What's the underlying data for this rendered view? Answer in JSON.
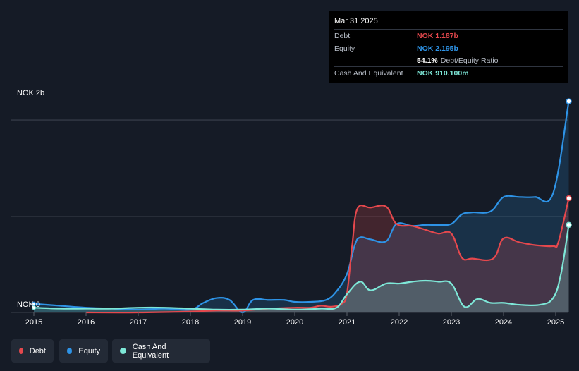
{
  "tooltip": {
    "date": "Mar 31 2025",
    "debt_label": "Debt",
    "debt_value": "NOK 1.187b",
    "equity_label": "Equity",
    "equity_value": "NOK 2.195b",
    "ratio_value": "54.1%",
    "ratio_label": "Debt/Equity Ratio",
    "cash_label": "Cash And Equivalent",
    "cash_value": "NOK 910.100m"
  },
  "legend": {
    "debt": "Debt",
    "equity": "Equity",
    "cash": "Cash And Equivalent"
  },
  "colors": {
    "debt": "#e5484d",
    "equity": "#2e93e6",
    "cash": "#7ee8d8",
    "background": "#151b26"
  },
  "chart_data": {
    "type": "area",
    "title": "",
    "xlabel": "",
    "ylabel": "",
    "y_axis_labels": [
      "NOK 2b",
      "NOK 0"
    ],
    "ylim_billions": [
      0,
      2.2
    ],
    "x_ticks": [
      "2015",
      "2016",
      "2017",
      "2018",
      "2019",
      "2020",
      "2021",
      "2022",
      "2023",
      "2024",
      "2025"
    ],
    "grid": true,
    "legend_position": "bottom-left",
    "series": [
      {
        "name": "Debt",
        "x": [
          2016.0,
          2017.0,
          2018.0,
          2018.5,
          2019.0,
          2019.5,
          2020.0,
          2020.3,
          2020.5,
          2020.7,
          2020.9,
          2021.0,
          2021.1,
          2021.2,
          2021.45,
          2021.75,
          2021.95,
          2022.25,
          2022.5,
          2022.75,
          2023.0,
          2023.2,
          2023.4,
          2023.8,
          2024.0,
          2024.3,
          2024.6,
          2024.95,
          2025.05,
          2025.25
        ],
        "values": [
          0.0,
          0.0,
          0.01,
          0.02,
          0.02,
          0.04,
          0.05,
          0.05,
          0.07,
          0.06,
          0.09,
          0.2,
          0.7,
          1.08,
          1.09,
          1.1,
          0.92,
          0.9,
          0.86,
          0.82,
          0.82,
          0.57,
          0.56,
          0.56,
          0.77,
          0.73,
          0.7,
          0.69,
          0.73,
          1.187
        ]
      },
      {
        "name": "Equity",
        "x": [
          2015.0,
          2015.5,
          2016.0,
          2016.5,
          2017.0,
          2017.5,
          2018.0,
          2018.25,
          2018.5,
          2018.75,
          2019.0,
          2019.2,
          2019.5,
          2019.8,
          2020.0,
          2020.3,
          2020.6,
          2020.8,
          2021.0,
          2021.15,
          2021.25,
          2021.45,
          2021.75,
          2021.95,
          2022.25,
          2022.5,
          2022.75,
          2023.0,
          2023.2,
          2023.4,
          2023.75,
          2024.0,
          2024.3,
          2024.6,
          2024.95,
          2025.25
        ],
        "values": [
          0.09,
          0.07,
          0.05,
          0.04,
          0.03,
          0.04,
          0.03,
          0.1,
          0.15,
          0.13,
          0.0,
          0.13,
          0.13,
          0.13,
          0.11,
          0.11,
          0.13,
          0.22,
          0.4,
          0.7,
          0.78,
          0.76,
          0.74,
          0.92,
          0.9,
          0.91,
          0.91,
          0.92,
          1.02,
          1.04,
          1.05,
          1.2,
          1.2,
          1.2,
          1.24,
          2.195
        ]
      },
      {
        "name": "Cash And Equivalent",
        "x": [
          2015.0,
          2015.5,
          2016.0,
          2016.5,
          2017.0,
          2017.5,
          2018.0,
          2018.5,
          2019.0,
          2019.5,
          2020.0,
          2020.5,
          2020.8,
          2021.0,
          2021.25,
          2021.45,
          2021.75,
          2022.0,
          2022.25,
          2022.5,
          2022.75,
          2023.0,
          2023.25,
          2023.5,
          2023.75,
          2024.0,
          2024.3,
          2024.7,
          2024.95,
          2025.1,
          2025.25
        ],
        "values": [
          0.05,
          0.04,
          0.04,
          0.04,
          0.05,
          0.05,
          0.04,
          0.03,
          0.03,
          0.04,
          0.03,
          0.04,
          0.05,
          0.19,
          0.32,
          0.23,
          0.3,
          0.3,
          0.32,
          0.33,
          0.32,
          0.3,
          0.06,
          0.14,
          0.1,
          0.1,
          0.08,
          0.08,
          0.15,
          0.4,
          0.91
        ]
      }
    ]
  }
}
